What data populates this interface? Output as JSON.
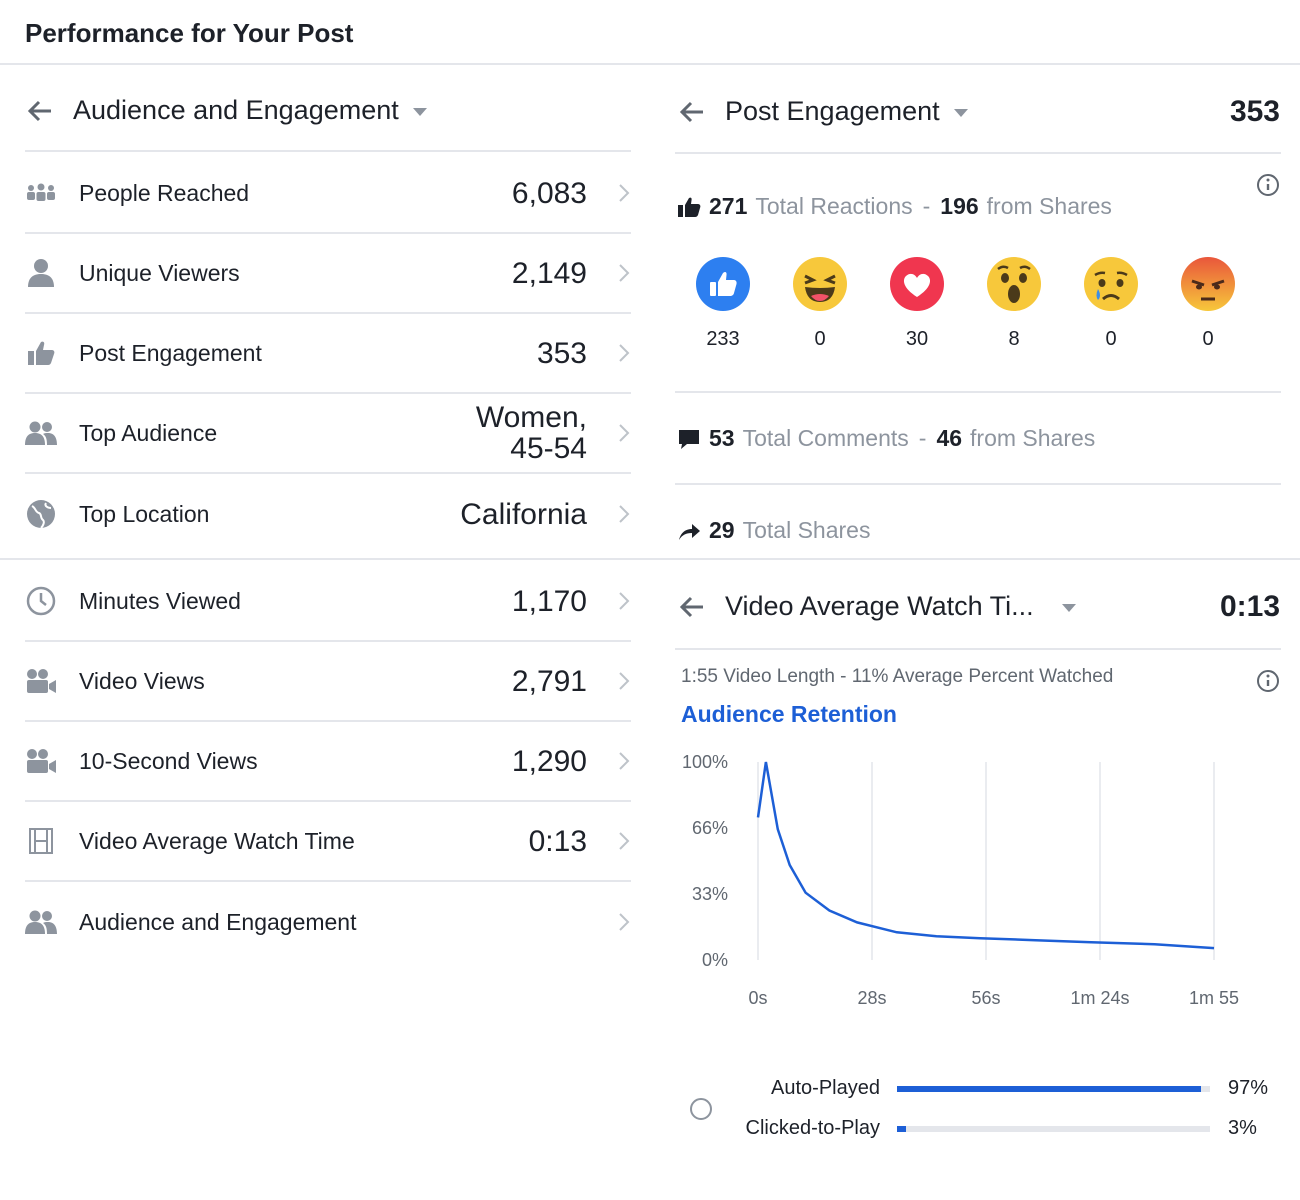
{
  "page_title": "Performance for Your Post",
  "left_panel": {
    "header": "Audience and Engagement",
    "rows": [
      {
        "label": "People Reached",
        "value": "6,083",
        "icon": "people-reached-icon"
      },
      {
        "label": "Unique Viewers",
        "value": "2,149",
        "icon": "person-icon"
      },
      {
        "label": "Post Engagement",
        "value": "353",
        "icon": "thumbs-up-icon"
      },
      {
        "label": "Top Audience",
        "value_line1": "Women,",
        "value_line2": "45-54",
        "icon": "group-icon"
      },
      {
        "label": "Top Location",
        "value": "California",
        "icon": "globe-icon"
      },
      {
        "label": "Minutes Viewed",
        "value": "1,170",
        "icon": "clock-icon"
      },
      {
        "label": "Video Views",
        "value": "2,791",
        "icon": "video-camera-icon"
      },
      {
        "label": "10-Second Views",
        "value": "1,290",
        "icon": "video-camera-icon"
      },
      {
        "label": "Video Average Watch Time",
        "value": "0:13",
        "icon": "film-icon"
      },
      {
        "label": "Audience and Engagement",
        "value": "",
        "icon": "group-icon"
      }
    ]
  },
  "engagement_panel": {
    "header": "Post Engagement",
    "total": "353",
    "reactions_line": {
      "count": "271",
      "label": "Total Reactions",
      "sep": "-",
      "shares_count": "196",
      "shares_label": "from Shares"
    },
    "reactions": [
      {
        "name": "like",
        "count": "233"
      },
      {
        "name": "haha",
        "count": "0"
      },
      {
        "name": "love",
        "count": "30"
      },
      {
        "name": "wow",
        "count": "8"
      },
      {
        "name": "sad",
        "count": "0"
      },
      {
        "name": "angry",
        "count": "0"
      }
    ],
    "comments_line": {
      "count": "53",
      "label": "Total Comments",
      "sep": "-",
      "shares_count": "46",
      "shares_label": "from Shares"
    },
    "shares_line": {
      "count": "29",
      "label": "Total Shares"
    }
  },
  "watch_panel": {
    "header": "Video Average Watch Ti...",
    "total": "0:13",
    "sub_note": "1:55 Video Length - 11% Average Percent Watched",
    "retention_title": "Audience Retention",
    "autoplay": {
      "label": "Auto-Played",
      "pct_text": "97%",
      "value": 97
    },
    "clicked": {
      "label": "Clicked-to-Play",
      "pct_text": "3%",
      "value": 3
    }
  },
  "colors": {
    "accent": "#1d5fd6",
    "divider": "#e4e6eb",
    "muted": "#8d949e"
  },
  "chart_data": {
    "type": "line",
    "title": "Audience Retention",
    "x_tick_labels": [
      "0s",
      "28s",
      "56s",
      "1m 24s",
      "1m 55"
    ],
    "y_tick_labels": [
      "100%",
      "66%",
      "33%",
      "0%"
    ],
    "x_seconds": [
      0,
      2,
      5,
      8,
      12,
      18,
      25,
      35,
      45,
      56,
      70,
      84,
      100,
      115
    ],
    "y_percent": [
      72,
      100,
      66,
      48,
      34,
      25,
      19,
      14,
      12,
      11,
      10,
      9,
      8,
      6
    ],
    "xlim": [
      0,
      115
    ],
    "ylim": [
      0,
      100
    ],
    "series": [
      {
        "name": "Retention",
        "color": "#1d5fd6"
      }
    ]
  }
}
